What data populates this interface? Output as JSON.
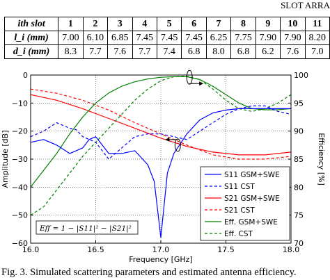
{
  "header": {
    "title": "SLOT ARRA"
  },
  "slot_table": {
    "rows": [
      {
        "label": "ith slot",
        "values": [
          "1",
          "2",
          "3",
          "4",
          "5",
          "6",
          "7",
          "8",
          "9",
          "10",
          "11"
        ]
      },
      {
        "label": "l_i (mm)",
        "values": [
          "7.00",
          "6.10",
          "6.85",
          "7.45",
          "7.45",
          "7.45",
          "6.25",
          "7.75",
          "7.90",
          "7.90",
          "8.20"
        ]
      },
      {
        "label": "d_i (mm)",
        "values": [
          "8.3",
          "7.7",
          "7.6",
          "7.7",
          "7.4",
          "6.8",
          "8.0",
          "6.8",
          "6.2",
          "7.6",
          "7.0"
        ]
      }
    ]
  },
  "chart_data": {
    "type": "line",
    "xlabel": "Frequency [GHz]",
    "ylabel": "Amplitude [dB]",
    "y2label": "Efficiency [%]",
    "xlim": [
      16.0,
      18.0
    ],
    "ylim": [
      -60,
      0
    ],
    "y2lim": [
      70,
      100
    ],
    "xticks": [
      "16.0",
      "16.5",
      "17.0",
      "17.5",
      "18.0"
    ],
    "yticks": [
      "0",
      "−10",
      "−20",
      "−30",
      "−40",
      "−50",
      "−60"
    ],
    "y2ticks": [
      "100",
      "95",
      "90",
      "85",
      "80",
      "75",
      "70"
    ],
    "grid": true,
    "legend_position": "bottom-right",
    "annotation": "Eff = 1 − |S11|² − |S21|²",
    "series": [
      {
        "name": "S11 GSM+SWE",
        "axis": "left",
        "color": "#0000ff",
        "dash": false,
        "x": [
          16.0,
          16.1,
          16.2,
          16.3,
          16.4,
          16.45,
          16.5,
          16.55,
          16.6,
          16.7,
          16.8,
          16.9,
          16.95,
          17.0,
          17.05,
          17.1,
          17.2,
          17.3,
          17.4,
          17.5,
          17.6,
          17.7,
          17.8,
          17.9,
          18.0
        ],
        "y": [
          -24,
          -23,
          -25,
          -28,
          -26,
          -23,
          -22,
          -25,
          -28,
          -28,
          -27,
          -32,
          -38,
          -58,
          -35,
          -28,
          -21,
          -16,
          -13.5,
          -12.5,
          -12,
          -12,
          -12,
          -12,
          -12
        ]
      },
      {
        "name": "S11 CST",
        "axis": "left",
        "color": "#0000ff",
        "dash": true,
        "x": [
          16.0,
          16.1,
          16.2,
          16.3,
          16.35,
          16.4,
          16.5,
          16.6,
          16.7,
          16.8,
          16.9,
          17.0,
          17.1,
          17.2,
          17.3,
          17.4,
          17.5,
          17.6,
          17.7,
          17.8,
          17.9,
          18.0
        ],
        "y": [
          -22,
          -20,
          -17,
          -19,
          -19.5,
          -22,
          -24,
          -30,
          -26,
          -22,
          -21,
          -21,
          -22,
          -23,
          -20,
          -17,
          -14,
          -12,
          -11,
          -11,
          -13,
          -14
        ]
      },
      {
        "name": "S21 GSM+SWE",
        "axis": "left",
        "color": "#ff0000",
        "dash": false,
        "x": [
          16.0,
          16.2,
          16.4,
          16.6,
          16.8,
          17.0,
          17.2,
          17.4,
          17.6,
          17.8,
          18.0
        ],
        "y": [
          -7,
          -9,
          -12,
          -15.5,
          -19,
          -22.5,
          -25.5,
          -27.5,
          -28.5,
          -28.5,
          -27.5
        ]
      },
      {
        "name": "S21 CST",
        "axis": "left",
        "color": "#ff0000",
        "dash": true,
        "x": [
          16.0,
          16.2,
          16.4,
          16.6,
          16.8,
          17.0,
          17.2,
          17.4,
          17.6,
          17.8,
          18.0
        ],
        "y": [
          -5,
          -6.5,
          -9,
          -12.5,
          -17,
          -21,
          -25,
          -28.5,
          -30,
          -30,
          -29
        ]
      },
      {
        "name": "Eff. GSM+SWE",
        "axis": "right",
        "color": "#008000",
        "dash": false,
        "x": [
          16.0,
          16.1,
          16.2,
          16.3,
          16.4,
          16.5,
          16.6,
          16.7,
          16.8,
          16.9,
          17.0,
          17.1,
          17.2,
          17.3,
          17.4,
          17.5,
          17.6,
          17.7,
          17.8,
          17.9,
          18.0
        ],
        "y": [
          80,
          83,
          86,
          89.5,
          92.5,
          95,
          96.8,
          98,
          98.8,
          99.3,
          99.6,
          99.7,
          99.7,
          99.2,
          98,
          96.5,
          95,
          94,
          93.8,
          93.8,
          94
        ]
      },
      {
        "name": "Eff. CST",
        "axis": "right",
        "color": "#008000",
        "dash": true,
        "x": [
          16.0,
          16.1,
          16.2,
          16.3,
          16.4,
          16.5,
          16.6,
          16.7,
          16.8,
          16.9,
          17.0,
          17.1,
          17.2,
          17.3,
          17.4,
          17.5,
          17.6,
          17.7,
          17.8,
          17.9,
          18.0
        ],
        "y": [
          75,
          76.5,
          79.5,
          82.5,
          85.5,
          88,
          90.5,
          93,
          95.5,
          97.5,
          99,
          99.7,
          99.8,
          99.2,
          97.5,
          95.5,
          94,
          93.5,
          94,
          95,
          96.5
        ]
      }
    ]
  },
  "caption": "Fig. 3. Simulated scattering parameters and estimated antenna efficiency."
}
